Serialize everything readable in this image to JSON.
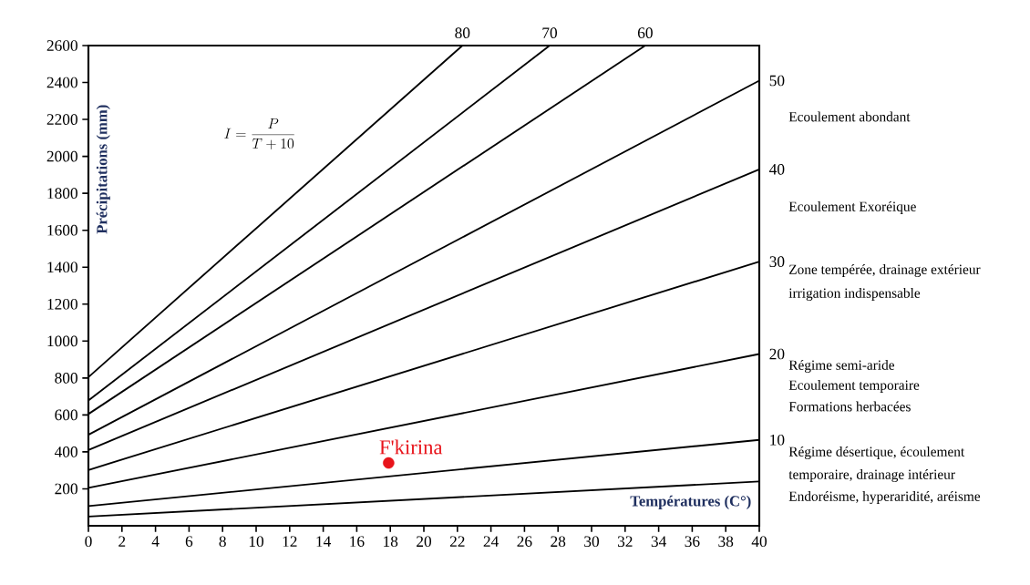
{
  "chart_data": {
    "type": "line",
    "xlabel": "Températures (C°)",
    "ylabel": "Précipitations (mm)",
    "xlim": [
      0,
      40
    ],
    "ylim": [
      0,
      2600
    ],
    "xticks": [
      0,
      2,
      4,
      6,
      8,
      10,
      12,
      14,
      16,
      18,
      20,
      22,
      24,
      26,
      28,
      30,
      32,
      34,
      36,
      38,
      40
    ],
    "yticks": [
      200,
      400,
      600,
      800,
      1000,
      1200,
      1400,
      1600,
      1800,
      2000,
      2200,
      2400,
      2600
    ],
    "series": [
      {
        "color": "#000000",
        "x": [
          0,
          40
        ],
        "values": [
          50,
          240
        ]
      },
      {
        "name": "10",
        "color": "#000000",
        "x": [
          0,
          40
        ],
        "values": [
          107,
          465
        ]
      },
      {
        "name": "20",
        "color": "#000000",
        "x": [
          0,
          40
        ],
        "values": [
          205,
          930
        ]
      },
      {
        "name": "30",
        "color": "#000000",
        "x": [
          0,
          40
        ],
        "values": [
          302,
          1430
        ]
      },
      {
        "name": "40",
        "color": "#000000",
        "x": [
          0,
          40
        ],
        "values": [
          410,
          1930
        ]
      },
      {
        "name": "50",
        "color": "#000000",
        "x": [
          0,
          40
        ],
        "values": [
          493,
          2410
        ]
      },
      {
        "name": "60",
        "color": "#000000",
        "x": [
          0,
          33.2
        ],
        "values": [
          605,
          2600
        ]
      },
      {
        "name": "70",
        "color": "#000000",
        "x": [
          0,
          27.5
        ],
        "values": [
          678,
          2600
        ]
      },
      {
        "name": "80",
        "color": "#000000",
        "x": [
          0,
          22.3
        ],
        "values": [
          805,
          2600
        ]
      },
      {
        "type": "scatter",
        "name": "F'kirina",
        "color": "#e8141b",
        "marker": "circle",
        "x": [
          17.9
        ],
        "values": [
          340
        ]
      }
    ],
    "annotations": [
      "I=\\frac{P}{T+10}",
      "Ecoulement abondant",
      "Ecoulement Exoréique",
      "Zone tempérée, drainage extérieur",
      "irrigation indispensable",
      "Régime semi-aride",
      "Ecoulement temporaire",
      "Formations herbacées",
      "Régime désertique, écoulement",
      "temporaire, drainage intérieur",
      "Endoréisme, hyperaridité, aréisme"
    ]
  }
}
